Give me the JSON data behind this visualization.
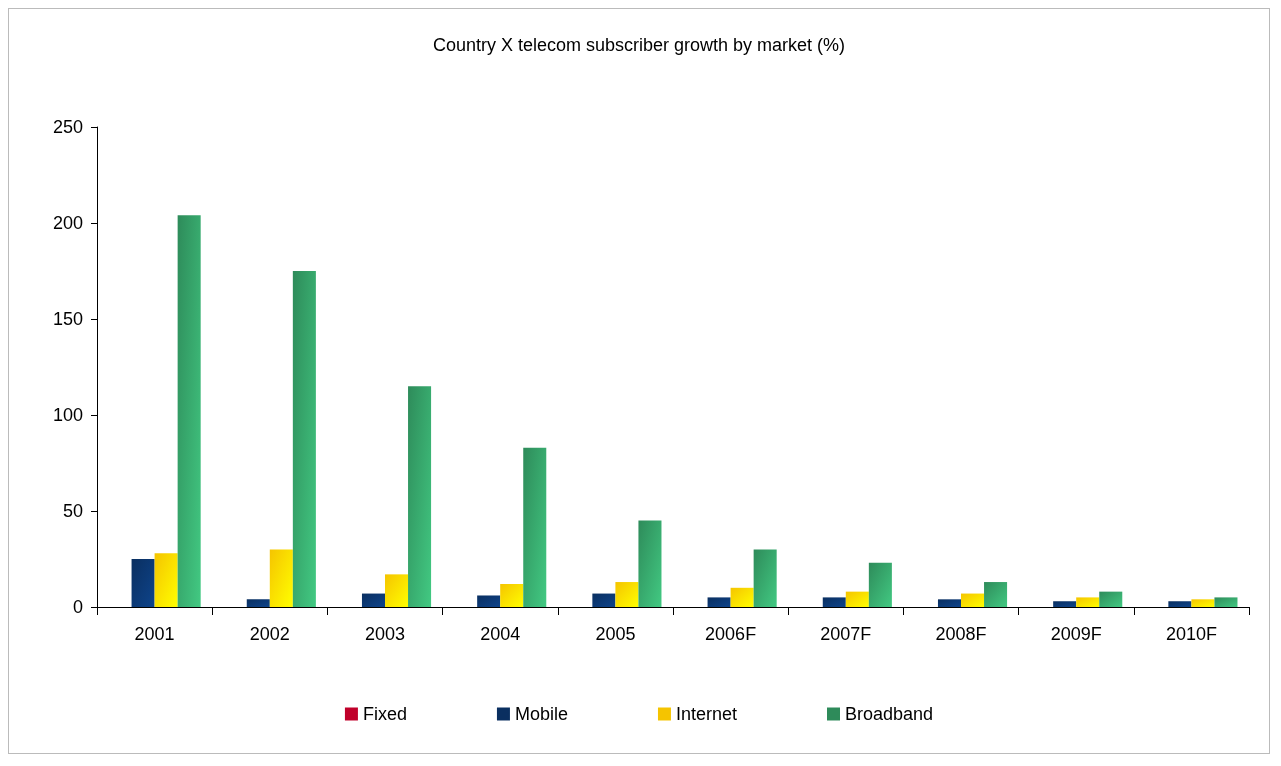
{
  "chart_data": {
    "type": "bar",
    "title": "Country X telecom subscriber growth by market (%)",
    "categories": [
      "2001",
      "2002",
      "2003",
      "2004",
      "2005",
      "2006F",
      "2007F",
      "2008F",
      "2009F",
      "2010F"
    ],
    "series": [
      {
        "name": "Fixed",
        "color": "#c0002a",
        "values": [
          0,
          0,
          0,
          0,
          0,
          0,
          0,
          0,
          0,
          0
        ]
      },
      {
        "name": "Mobile",
        "color": "#0a2f60",
        "values": [
          25,
          4,
          7,
          6,
          7,
          5,
          5,
          4,
          3,
          3
        ]
      },
      {
        "name": "Internet",
        "color": "#f5c400",
        "values": [
          28,
          30,
          17,
          12,
          13,
          10,
          8,
          7,
          5,
          4
        ]
      },
      {
        "name": "Broadband",
        "color": "#2e8b5a",
        "values": [
          204,
          175,
          115,
          83,
          45,
          30,
          23,
          13,
          8,
          5
        ]
      }
    ],
    "ylim": [
      0,
      250
    ],
    "yticks": [
      0,
      50,
      100,
      150,
      200,
      250
    ],
    "grid": false,
    "legend": "bottom"
  }
}
